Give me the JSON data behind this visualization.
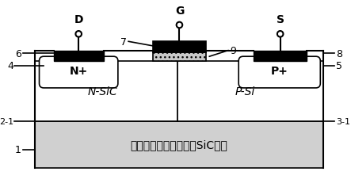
{
  "fig_width": 4.43,
  "fig_height": 2.32,
  "dpi": 100,
  "bg_color": "#ffffff",
  "substrate_color": "#d0d0d0",
  "nplus_color": "#000000",
  "pplus_color": "#000000",
  "gate_metal_color": "#000000",
  "gate_dielectric_color": "#c8c8c8",
  "body_left_color": "#ffffff",
  "body_right_color": "#ffffff",
  "border_color": "#000000",
  "substrate_text": "非故意掃杂或未掃杂的SiC衬底",
  "label_1": "1",
  "label_2_1": "2-1",
  "label_3_1": "3-1",
  "label_4": "4",
  "label_5": "5",
  "label_6": "6",
  "label_7": "7",
  "label_8": "8",
  "label_9": "9",
  "label_D": "D",
  "label_G": "G",
  "label_S": "S",
  "label_Nplus": "N+",
  "label_Pplus": "P+",
  "label_NSiC": "N-SiC",
  "label_PSi": "P-Si"
}
